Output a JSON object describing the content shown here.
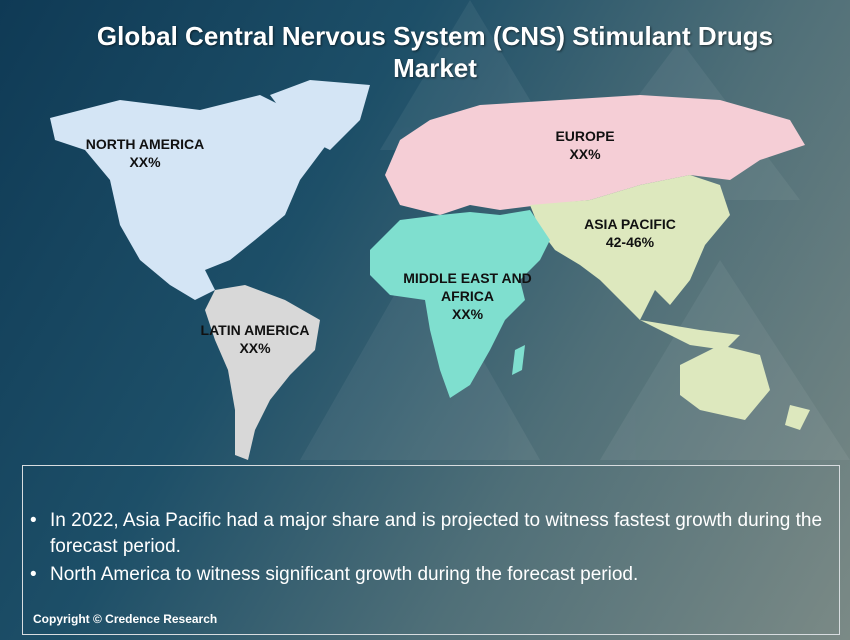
{
  "title": "Global Central Nervous System (CNS) Stimulant Drugs Market",
  "regions": [
    {
      "name": "NORTH AMERICA",
      "share": "XX%"
    },
    {
      "name": "EUROPE",
      "share": "XX%"
    },
    {
      "name": "ASIA PACIFIC",
      "share": "42-46%"
    },
    {
      "name": "MIDDLE EAST AND AFRICA",
      "share": "XX%"
    },
    {
      "name": "LATIN AMERICA",
      "share": "XX%"
    }
  ],
  "bullets": [
    "In 2022, Asia Pacific had a major share and is projected to witness fastest growth during the forecast period.",
    "North America to witness significant growth during the forecast period."
  ],
  "copyright": "Copyright © Credence Research"
}
